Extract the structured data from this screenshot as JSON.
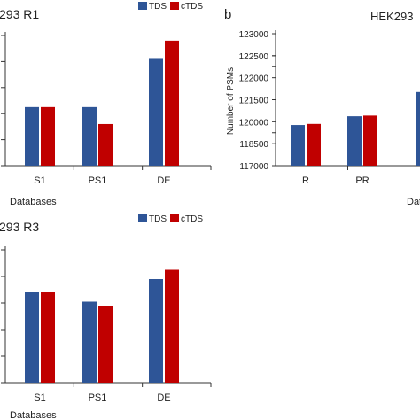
{
  "colors": {
    "tds": "#2E5597",
    "ctds": "#C00000",
    "axis": "#333333"
  },
  "panels": {
    "a": {
      "title": "293 R1",
      "legend": [
        "TDS",
        "cTDS"
      ],
      "categories": [
        "S1",
        "PS1",
        "DE"
      ],
      "xlabel": "Databases",
      "ticks_visible": []
    },
    "b": {
      "letter": "b",
      "title": "HEK293",
      "legend": [],
      "categories": [
        "R",
        "PR"
      ],
      "xlabel": "Data",
      "ylabel": "Number of PSMs",
      "yticks": [
        "123000",
        "122500",
        "122000",
        "121500",
        "120000",
        "118500",
        "117000"
      ]
    },
    "c": {
      "title": "293 R3",
      "legend": [
        "TDS",
        "cTDS"
      ],
      "categories": [
        "S1",
        "PS1",
        "DE"
      ],
      "xlabel": "Databases"
    }
  },
  "chart_data": [
    {
      "type": "bar",
      "title": "293 R1",
      "categories": [
        "S1",
        "PS1",
        "DE"
      ],
      "series": [
        {
          "name": "TDS",
          "values": [
            0.45,
            0.45,
            0.82
          ]
        },
        {
          "name": "cTDS",
          "values": [
            0.45,
            0.32,
            0.96
          ]
        }
      ],
      "xlabel": "Databases",
      "ylim": [
        0,
        1
      ]
    },
    {
      "type": "bar",
      "title": "HEK293",
      "categories": [
        "R",
        "PR"
      ],
      "series": [
        {
          "name": "TDS",
          "values": [
            118850,
            119250
          ]
        },
        {
          "name": "cTDS",
          "values": [
            118900,
            119280
          ]
        }
      ],
      "xlabel": "Data",
      "ylabel": "Number of PSMs",
      "ylim": [
        117000,
        123000
      ]
    },
    {
      "type": "bar",
      "title": "293 R3",
      "categories": [
        "S1",
        "PS1",
        "DE"
      ],
      "series": [
        {
          "name": "TDS",
          "values": [
            0.68,
            0.61,
            0.78
          ]
        },
        {
          "name": "cTDS",
          "values": [
            0.68,
            0.58,
            0.85
          ]
        }
      ],
      "xlabel": "Databases",
      "ylim": [
        0,
        1
      ]
    }
  ]
}
